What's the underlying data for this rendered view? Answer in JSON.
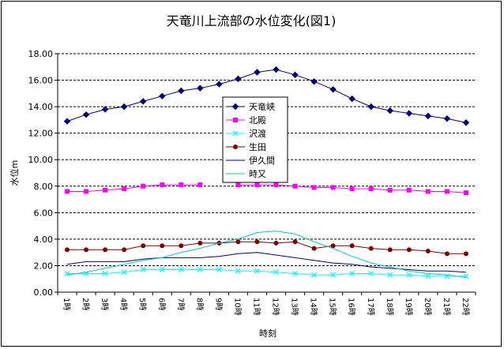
{
  "chart_data": {
    "type": "line",
    "title": "天竜川上流部の水位変化(図1)",
    "xlabel": "時刻",
    "ylabel": "水位m",
    "categories": [
      "1時",
      "2時",
      "3時",
      "4時",
      "5時",
      "6時",
      "7時",
      "8時",
      "9時",
      "10時",
      "11時",
      "12時",
      "13時",
      "14時",
      "15時",
      "16時",
      "17時",
      "18時",
      "19時",
      "20時",
      "21時",
      "22時"
    ],
    "ylim": [
      0,
      18
    ],
    "ytick_labels": [
      "0.00",
      "2.00",
      "4.00",
      "6.00",
      "8.00",
      "10.00",
      "12.00",
      "14.00",
      "16.00",
      "18.00"
    ],
    "grid": "horizontal-dashed",
    "legend_position": "center",
    "series": [
      {
        "name": "天竜峡",
        "color": "#000080",
        "marker": "diamond",
        "values": [
          12.9,
          13.4,
          13.8,
          14.0,
          14.4,
          14.8,
          15.2,
          15.4,
          15.7,
          16.1,
          16.6,
          16.8,
          16.4,
          15.9,
          15.3,
          14.6,
          14.0,
          13.7,
          13.5,
          13.3,
          13.1,
          12.8
        ]
      },
      {
        "name": "北殿",
        "color": "#ff00ff",
        "marker": "square",
        "values": [
          7.6,
          7.6,
          7.7,
          7.8,
          8.0,
          8.1,
          8.1,
          8.1,
          null,
          8.1,
          8.1,
          8.1,
          8.0,
          7.9,
          7.9,
          7.8,
          7.8,
          7.7,
          7.7,
          7.6,
          7.6,
          7.5
        ]
      },
      {
        "name": "沢渡",
        "color": "#00ffff",
        "marker": "x",
        "values": [
          1.4,
          1.4,
          1.4,
          1.5,
          1.7,
          1.7,
          1.7,
          1.7,
          1.7,
          1.6,
          1.6,
          1.5,
          1.4,
          1.3,
          1.3,
          1.4,
          1.4,
          1.3,
          1.3,
          1.2,
          1.2,
          1.2
        ]
      },
      {
        "name": "生田",
        "color": "#800000",
        "marker": "circle",
        "values": [
          3.2,
          3.2,
          3.2,
          3.2,
          3.5,
          3.5,
          3.5,
          3.7,
          3.7,
          3.8,
          3.8,
          3.7,
          3.8,
          3.3,
          3.5,
          3.5,
          3.3,
          3.2,
          3.2,
          3.1,
          2.9,
          2.9
        ]
      },
      {
        "name": "伊久間",
        "color": "#000080",
        "marker": "none",
        "values": [
          2.1,
          2.3,
          2.3,
          2.3,
          2.5,
          2.6,
          2.6,
          2.6,
          2.7,
          2.9,
          3.0,
          2.8,
          2.6,
          2.4,
          2.2,
          2.1,
          1.9,
          1.8,
          1.7,
          1.6,
          1.6,
          1.5
        ]
      },
      {
        "name": "時又",
        "color": "#00cccc",
        "marker": "none",
        "values": [
          1.3,
          1.5,
          1.8,
          2.1,
          2.4,
          2.6,
          3.0,
          3.3,
          3.7,
          4.0,
          4.5,
          4.6,
          4.4,
          3.8,
          3.3,
          2.7,
          2.2,
          1.9,
          1.6,
          1.4,
          1.3,
          1.1
        ]
      }
    ]
  }
}
